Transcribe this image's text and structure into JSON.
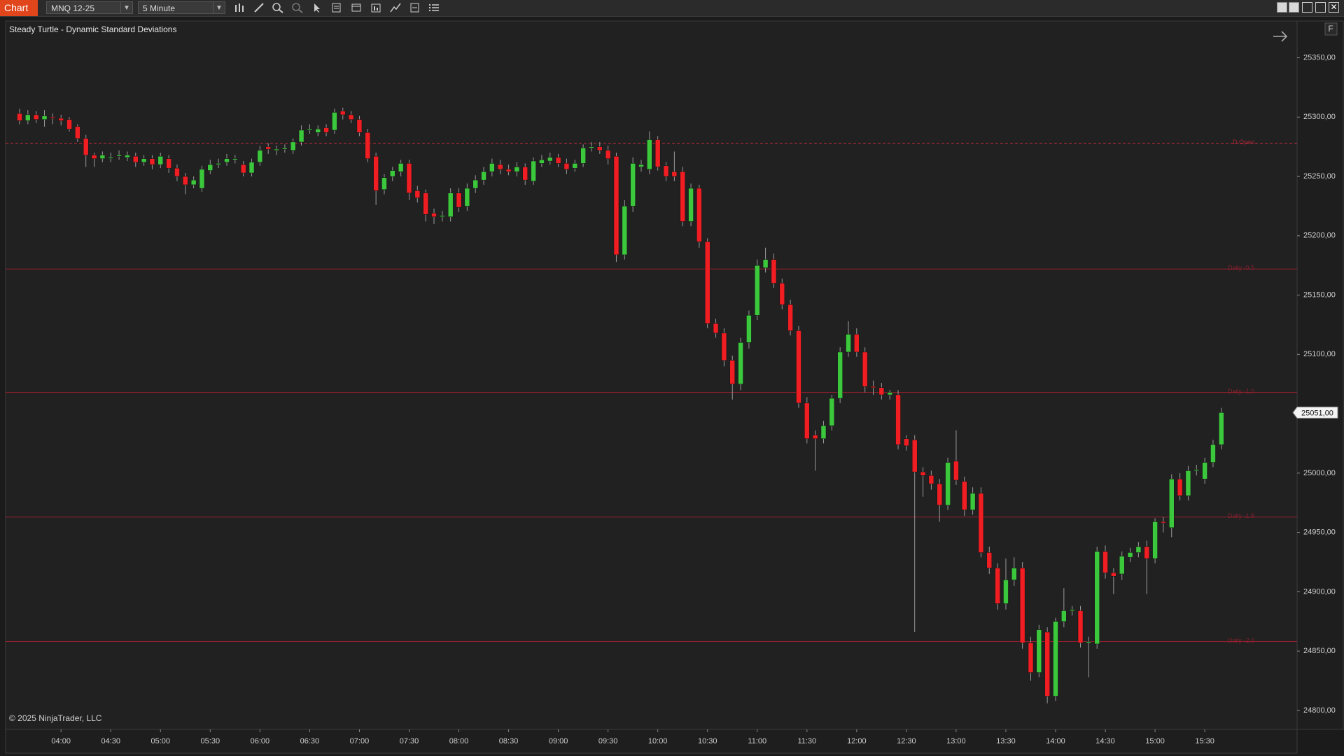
{
  "toolbar": {
    "tab": "Chart",
    "instrument": "MNQ 12-25",
    "interval": "5 Minute"
  },
  "copyright": "© 2025 NinjaTrader, LLC",
  "chart_data": {
    "type": "candlestick",
    "title": "Steady Turtle - Dynamic Standard Deviations",
    "up_color": "#3cc83c",
    "down_color": "#f01e23",
    "wick_color": "#9a9a9a",
    "x": [
      "03:35",
      "03:40",
      "03:45",
      "03:50",
      "03:55",
      "04:00",
      "04:05",
      "04:10",
      "04:15",
      "04:20",
      "04:25",
      "04:30",
      "04:35",
      "04:40",
      "04:45",
      "04:50",
      "04:55",
      "05:00",
      "05:05",
      "05:10",
      "05:15",
      "05:20",
      "05:25",
      "05:30",
      "05:35",
      "05:40",
      "05:45",
      "05:50",
      "05:55",
      "06:00",
      "06:05",
      "06:10",
      "06:15",
      "06:20",
      "06:25",
      "06:30",
      "06:35",
      "06:40",
      "06:45",
      "06:50",
      "06:55",
      "07:00",
      "07:05",
      "07:10",
      "07:15",
      "07:20",
      "07:25",
      "07:30",
      "07:35",
      "07:40",
      "07:45",
      "07:50",
      "07:55",
      "08:00",
      "08:05",
      "08:10",
      "08:15",
      "08:20",
      "08:25",
      "08:30",
      "08:35",
      "08:40",
      "08:45",
      "08:50",
      "08:55",
      "09:00",
      "09:05",
      "09:10",
      "09:15",
      "09:20",
      "09:25",
      "09:30",
      "09:35",
      "09:40",
      "09:45",
      "09:50",
      "09:55",
      "10:00",
      "10:05",
      "10:10",
      "10:15",
      "10:20",
      "10:25",
      "10:30",
      "10:35",
      "10:40",
      "10:45",
      "10:50",
      "10:55",
      "11:00",
      "11:05",
      "11:10",
      "11:15",
      "11:20",
      "11:25",
      "11:30",
      "11:35",
      "11:40",
      "11:45",
      "11:50",
      "11:55",
      "12:00",
      "12:05",
      "12:10",
      "12:15",
      "12:20",
      "12:25",
      "12:30",
      "12:35",
      "12:40",
      "12:45",
      "12:50",
      "12:55",
      "13:00",
      "13:05",
      "13:10",
      "13:15",
      "13:20",
      "13:25",
      "13:30",
      "13:35",
      "13:40",
      "13:45",
      "13:50",
      "13:55",
      "14:00",
      "14:05",
      "14:10",
      "14:15",
      "14:20",
      "14:25",
      "14:30",
      "14:35",
      "14:40",
      "14:45",
      "14:50",
      "14:55",
      "15:00",
      "15:05",
      "15:10",
      "15:15",
      "15:20",
      "15:25",
      "15:30",
      "15:35",
      "15:40"
    ],
    "open": [
      25303,
      25297,
      25302,
      25298,
      25300,
      25299,
      25298,
      25292,
      25282,
      25268,
      25265,
      25266,
      25267,
      25266,
      25267,
      25262,
      25265,
      25260,
      25265,
      25257,
      25250,
      25243,
      25240,
      25255,
      25260,
      25262,
      25264,
      25260,
      25253,
      25262,
      25275,
      25272,
      25273,
      25272,
      25279,
      25289,
      25287,
      25291,
      25289,
      25305,
      25302,
      25298,
      25287,
      25267,
      25239,
      25250,
      25254,
      25261,
      25238,
      25236,
      25219,
      25216,
      25216,
      25236,
      25225,
      25240,
      25247,
      25254,
      25260,
      25256,
      25254,
      25258,
      25246,
      25261,
      25263,
      25266,
      25261,
      25257,
      25261,
      25274,
      25275,
      25272,
      25267,
      25184,
      25225,
      25258,
      25256,
      25281,
      25259,
      25254,
      25254,
      25212,
      25240,
      25195,
      25126,
      25118,
      25095,
      25075,
      25110,
      25133,
      25173,
      25180,
      25160,
      25142,
      25120,
      25059,
      25032,
      25029,
      25040,
      25063,
      25102,
      25117,
      25102,
      25073,
      25072,
      25066,
      25066,
      25029,
      25028,
      25001,
      24998,
      24991,
      24973,
      25010,
      24993,
      24969,
      24983,
      24933,
      24920,
      24890,
      24910,
      24920,
      24857,
      24832,
      24866,
      24812,
      24875,
      24884,
      24884,
      24857,
      24856,
      24934,
      24916,
      24915,
      24929,
      24933,
      24938,
      24928,
      24959,
      24954,
      24995,
      24981,
      25002,
      24995,
      25009,
      25024
    ],
    "high": [
      25307,
      25306,
      25305,
      25306,
      25303,
      25302,
      25300,
      25294,
      25285,
      25270,
      25271,
      25270,
      25272,
      25271,
      25270,
      25268,
      25268,
      25270,
      25268,
      25260,
      25253,
      25250,
      25259,
      25264,
      25265,
      25269,
      25268,
      25263,
      25265,
      25276,
      25278,
      25276,
      25277,
      25282,
      25293,
      25294,
      25293,
      25294,
      25307,
      25308,
      25305,
      25301,
      25290,
      25270,
      25252,
      25258,
      25264,
      25264,
      25242,
      25239,
      25223,
      25221,
      25240,
      25240,
      25244,
      25251,
      25258,
      25265,
      25264,
      25260,
      25262,
      25261,
      25266,
      25268,
      25270,
      25269,
      25265,
      25264,
      25277,
      25279,
      25279,
      25276,
      25270,
      25230,
      25266,
      25264,
      25288,
      25284,
      25262,
      25271,
      25258,
      25244,
      25243,
      25198,
      25130,
      25122,
      25099,
      25114,
      25137,
      25180,
      25190,
      25185,
      25164,
      25146,
      25124,
      25064,
      25036,
      25044,
      25066,
      25106,
      25128,
      25122,
      25106,
      25078,
      25076,
      25070,
      25070,
      25032,
      25032,
      25005,
      25002,
      24995,
      25013,
      25036,
      24997,
      24988,
      24988,
      24938,
      24924,
      24928,
      24929,
      24925,
      24862,
      24872,
      24870,
      24878,
      24903,
      24888,
      24888,
      24862,
      24938,
      24939,
      24920,
      24934,
      24937,
      24942,
      24943,
      24962,
      24963,
      24999,
      25000,
      25006,
      25007,
      25013,
      25028,
      25055
    ],
    "low": [
      25294,
      25294,
      25295,
      25292,
      25294,
      25293,
      25288,
      25279,
      25258,
      25258,
      25262,
      25262,
      25264,
      25263,
      25258,
      25259,
      25256,
      25257,
      25253,
      25246,
      25235,
      25240,
      25237,
      25252,
      25257,
      25259,
      25261,
      25250,
      25250,
      25259,
      25269,
      25268,
      25270,
      25269,
      25276,
      25286,
      25284,
      25284,
      25286,
      25298,
      25295,
      25284,
      25262,
      25226,
      25235,
      25246,
      25250,
      25230,
      25228,
      25212,
      25210,
      25212,
      25212,
      25220,
      25221,
      25236,
      25243,
      25250,
      25252,
      25251,
      25250,
      25243,
      25243,
      25258,
      25260,
      25258,
      25252,
      25254,
      25258,
      25271,
      25269,
      25260,
      25178,
      25180,
      25220,
      25254,
      25252,
      25255,
      25246,
      25246,
      25208,
      25208,
      25190,
      25122,
      25114,
      25090,
      25062,
      25070,
      25105,
      25129,
      25169,
      25156,
      25138,
      25116,
      25055,
      25025,
      25002,
      25025,
      25036,
      25059,
      25098,
      25098,
      25068,
      25066,
      25062,
      25062,
      25020,
      25019,
      24866,
      24980,
      24986,
      24959,
      24969,
      24990,
      24964,
      24965,
      24929,
      24915,
      24885,
      24885,
      24905,
      24852,
      24825,
      24828,
      24806,
      24808,
      24870,
      24880,
      24853,
      24828,
      24852,
      24911,
      24898,
      24910,
      24925,
      24929,
      24898,
      24924,
      24950,
      24946,
      24977,
      24977,
      24998,
      24991,
      25005,
      25020
    ],
    "close": [
      25297,
      25302,
      25298,
      25301,
      25299,
      25297,
      25290,
      25282,
      25268,
      25265,
      25268,
      25266,
      25268,
      25268,
      25262,
      25265,
      25260,
      25267,
      25257,
      25250,
      25243,
      25247,
      25256,
      25260,
      25261,
      25265,
      25265,
      25253,
      25262,
      25272,
      25273,
      25273,
      25274,
      25279,
      25289,
      25290,
      25290,
      25287,
      25304,
      25302,
      25298,
      25287,
      25265,
      25238,
      25249,
      25255,
      25261,
      25236,
      25232,
      25218,
      25216,
      25217,
      25236,
      25224,
      25240,
      25247,
      25254,
      25261,
      25256,
      25254,
      25258,
      25247,
      25263,
      25264,
      25266,
      25261,
      25256,
      25261,
      25274,
      25275,
      25272,
      25265,
      25184,
      25225,
      25261,
      25260,
      25281,
      25258,
      25250,
      25250,
      25212,
      25240,
      25195,
      25126,
      25118,
      25095,
      25075,
      25110,
      25133,
      25175,
      25180,
      25160,
      25142,
      25120,
      25059,
      25029,
      25029,
      25040,
      25063,
      25102,
      25117,
      25102,
      25073,
      25072,
      25066,
      25068,
      25024,
      25023,
      25001,
      24998,
      24991,
      24973,
      25009,
      24994,
      24969,
      24983,
      24933,
      24920,
      24890,
      24910,
      24920,
      24857,
      24832,
      24868,
      24812,
      24875,
      24884,
      24885,
      24857,
      24858,
      24934,
      24916,
      24913,
      24930,
      24933,
      24938,
      24928,
      24959,
      24958,
      24995,
      24981,
      25002,
      25003,
      25009,
      25024,
      25051
    ],
    "ylim": [
      24784,
      25381
    ],
    "yticks": [
      {
        "value": 24800,
        "label": "24800,00"
      },
      {
        "value": 24850,
        "label": "24850,00"
      },
      {
        "value": 24900,
        "label": "24900,00"
      },
      {
        "value": 24950,
        "label": "24950,00"
      },
      {
        "value": 25000,
        "label": "25000,00"
      },
      {
        "value": 25050,
        "label": "25050,00"
      },
      {
        "value": 25100,
        "label": "25100,00"
      },
      {
        "value": 25150,
        "label": "25150,00"
      },
      {
        "value": 25200,
        "label": "25200,00"
      },
      {
        "value": 25250,
        "label": "25250,00"
      },
      {
        "value": 25300,
        "label": "25300,00"
      },
      {
        "value": 25350,
        "label": "25350,00"
      }
    ],
    "xticks": [
      "04:00",
      "04:30",
      "05:00",
      "05:30",
      "06:00",
      "06:30",
      "07:00",
      "07:30",
      "08:00",
      "08:30",
      "09:00",
      "09:30",
      "10:00",
      "10:30",
      "11:00",
      "11:30",
      "12:00",
      "12:30",
      "13:00",
      "13:30",
      "14:00",
      "14:30",
      "15:00",
      "15:30"
    ],
    "levels": [
      {
        "name": "D.Open",
        "value": 25278,
        "color": "#c8283c",
        "dashed": true
      },
      {
        "name": "Daily -0.5",
        "value": 25172,
        "color": "#9a2030",
        "dashed": false
      },
      {
        "name": "Daily -1.0",
        "value": 25068,
        "color": "#9a2030",
        "dashed": false
      },
      {
        "name": "Daily -1.5",
        "value": 24963,
        "color": "#9a2030",
        "dashed": false
      },
      {
        "name": "Daily -2.0",
        "value": 24858,
        "color": "#9a2030",
        "dashed": false
      }
    ],
    "last_price": {
      "value": 25051,
      "label": "25051,00"
    }
  }
}
